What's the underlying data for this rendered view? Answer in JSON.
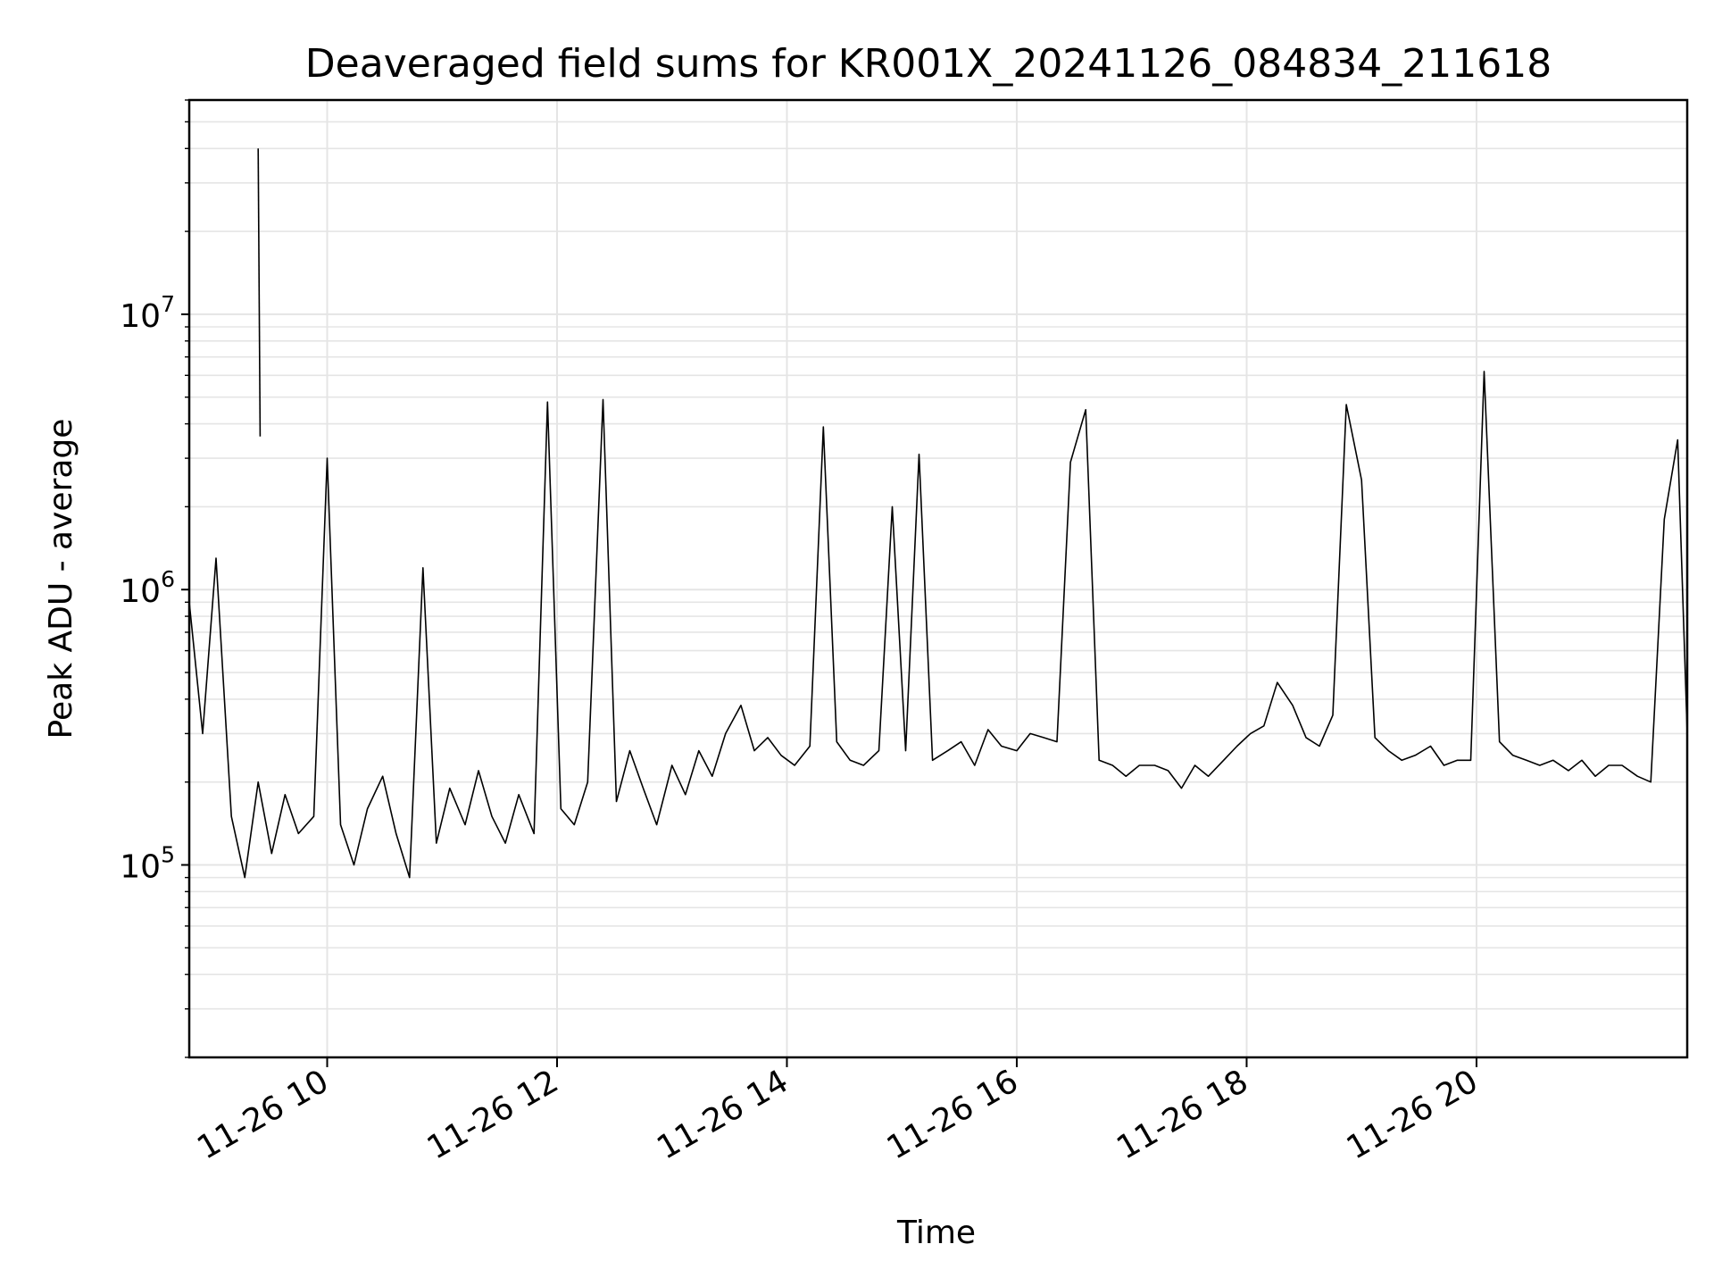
{
  "chart_data": {
    "type": "line",
    "title": "Deaveraged field sums for KR001X_20241126_084834_211618",
    "xlabel": "Time",
    "ylabel": "Peak ADU - average",
    "yscale": "log",
    "grid": true,
    "line_color": "#000000",
    "grid_color": "#e5e5e5",
    "xlim": [
      "2024-11-26 08:48",
      "2024-11-26 21:50"
    ],
    "ylim": [
      20000,
      60000000
    ],
    "x_ticks": [
      {
        "value": "2024-11-26 10:00",
        "label": "11-26 10"
      },
      {
        "value": "2024-11-26 12:00",
        "label": "11-26 12"
      },
      {
        "value": "2024-11-26 14:00",
        "label": "11-26 14"
      },
      {
        "value": "2024-11-26 16:00",
        "label": "11-26 16"
      },
      {
        "value": "2024-11-26 18:00",
        "label": "11-26 18"
      },
      {
        "value": "2024-11-26 20:00",
        "label": "11-26 20"
      }
    ],
    "y_ticks": [
      {
        "value": 100000,
        "base": "10",
        "exp": "5"
      },
      {
        "value": 1000000,
        "base": "10",
        "exp": "6"
      },
      {
        "value": 10000000,
        "base": "10",
        "exp": "7"
      }
    ],
    "series": [
      {
        "x": [
          "2024-11-26 08:48",
          "2024-11-26 08:55",
          "2024-11-26 09:02",
          "2024-11-26 09:10",
          "2024-11-26 09:17",
          "2024-11-26 09:24",
          "2024-11-26 09:31",
          "2024-11-26 09:38",
          "2024-11-26 09:45",
          "2024-11-26 09:53",
          "2024-11-26 10:00",
          "2024-11-26 10:07",
          "2024-11-26 10:14",
          "2024-11-26 10:21",
          "2024-11-26 10:29",
          "2024-11-26 10:36",
          "2024-11-26 10:43",
          "2024-11-26 10:50",
          "2024-11-26 10:57",
          "2024-11-26 11:04",
          "2024-11-26 11:12",
          "2024-11-26 11:19",
          "2024-11-26 11:26",
          "2024-11-26 11:33",
          "2024-11-26 11:40",
          "2024-11-26 11:48",
          "2024-11-26 11:55",
          "2024-11-26 12:02",
          "2024-11-26 12:09",
          "2024-11-26 12:16",
          "2024-11-26 12:24",
          "2024-11-26 12:31",
          "2024-11-26 12:38",
          "2024-11-26 12:45",
          "2024-11-26 12:52",
          "2024-11-26 13:00",
          "2024-11-26 13:07",
          "2024-11-26 13:14",
          "2024-11-26 13:21",
          "2024-11-26 13:28",
          "2024-11-26 13:36",
          "2024-11-26 13:43",
          "2024-11-26 13:50",
          "2024-11-26 13:57",
          "2024-11-26 14:04",
          "2024-11-26 14:12",
          "2024-11-26 14:19",
          "2024-11-26 14:26",
          "2024-11-26 14:33",
          "2024-11-26 14:40",
          "2024-11-26 14:48",
          "2024-11-26 14:55",
          "2024-11-26 15:02",
          "2024-11-26 15:09",
          "2024-11-26 15:16",
          "2024-11-26 15:24",
          "2024-11-26 15:31",
          "2024-11-26 15:38",
          "2024-11-26 15:45",
          "2024-11-26 15:52",
          "2024-11-26 16:00",
          "2024-11-26 16:07",
          "2024-11-26 16:14",
          "2024-11-26 16:21",
          "2024-11-26 16:28",
          "2024-11-26 16:36",
          "2024-11-26 16:43",
          "2024-11-26 16:50",
          "2024-11-26 16:57",
          "2024-11-26 17:04",
          "2024-11-26 17:12",
          "2024-11-26 17:19",
          "2024-11-26 17:26",
          "2024-11-26 17:33",
          "2024-11-26 17:40",
          "2024-11-26 17:48",
          "2024-11-26 17:55",
          "2024-11-26 18:02",
          "2024-11-26 18:09",
          "2024-11-26 18:16",
          "2024-11-26 18:24",
          "2024-11-26 18:31",
          "2024-11-26 18:38",
          "2024-11-26 18:45",
          "2024-11-26 18:52",
          "2024-11-26 19:00",
          "2024-11-26 19:07",
          "2024-11-26 19:14",
          "2024-11-26 19:21",
          "2024-11-26 19:28",
          "2024-11-26 19:36",
          "2024-11-26 19:43",
          "2024-11-26 19:50",
          "2024-11-26 19:57",
          "2024-11-26 20:04",
          "2024-11-26 20:12",
          "2024-11-26 20:19",
          "2024-11-26 20:26",
          "2024-11-26 20:33",
          "2024-11-26 20:40",
          "2024-11-26 20:48",
          "2024-11-26 20:55",
          "2024-11-26 21:02",
          "2024-11-26 21:09",
          "2024-11-26 21:16",
          "2024-11-26 21:24",
          "2024-11-26 21:31",
          "2024-11-26 21:38",
          "2024-11-26 21:45",
          "2024-11-26 21:50"
        ],
        "y": [
          900000,
          300000,
          1300000,
          150000,
          90000,
          200000,
          110000,
          180000,
          130000,
          150000,
          3000000,
          140000,
          100000,
          160000,
          210000,
          130000,
          90000,
          1200000,
          120000,
          190000,
          140000,
          220000,
          150000,
          120000,
          180000,
          130000,
          4800000,
          160000,
          140000,
          200000,
          4900000,
          170000,
          260000,
          190000,
          140000,
          230000,
          180000,
          260000,
          210000,
          300000,
          380000,
          260000,
          290000,
          250000,
          230000,
          270000,
          3900000,
          280000,
          240000,
          230000,
          260000,
          2000000,
          260000,
          3100000,
          240000,
          260000,
          280000,
          230000,
          310000,
          270000,
          260000,
          300000,
          290000,
          280000,
          2900000,
          4500000,
          240000,
          230000,
          210000,
          230000,
          230000,
          220000,
          190000,
          230000,
          210000,
          240000,
          270000,
          300000,
          320000,
          460000,
          380000,
          290000,
          270000,
          350000,
          4700000,
          2500000,
          290000,
          260000,
          240000,
          250000,
          270000,
          230000,
          240000,
          240000,
          6200000,
          280000,
          250000,
          240000,
          230000,
          240000,
          220000,
          240000,
          210000,
          230000,
          230000,
          210000,
          200000,
          1800000,
          3500000,
          300000
        ]
      },
      {
        "x": [
          "2024-11-26 09:24",
          "2024-11-26 09:25"
        ],
        "y": [
          40000000,
          3600000
        ]
      }
    ]
  }
}
